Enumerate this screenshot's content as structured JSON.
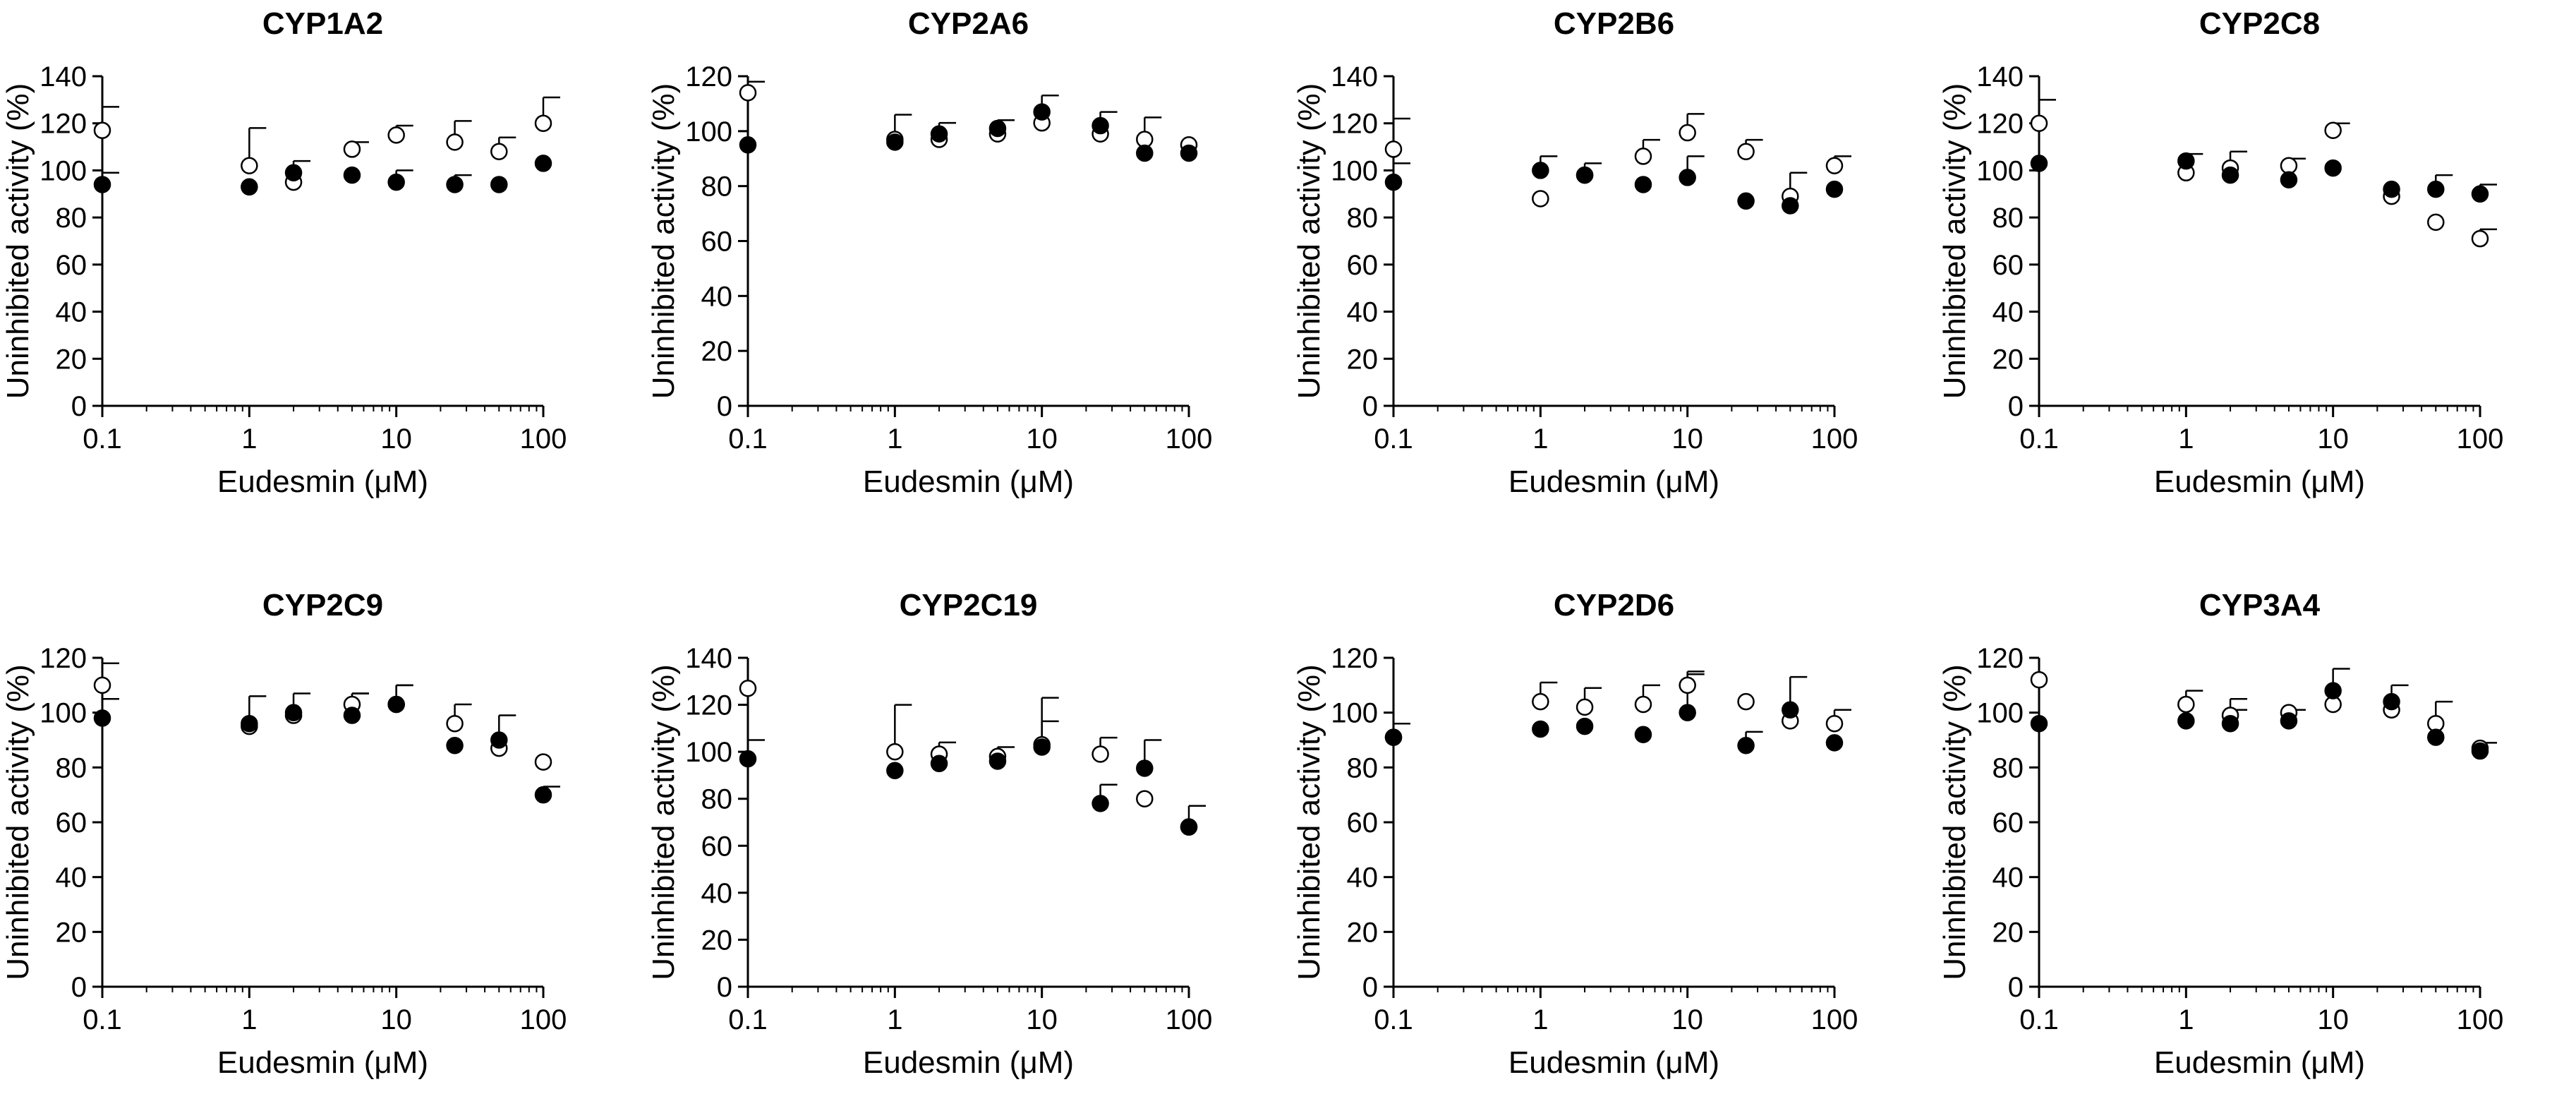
{
  "figure": {
    "description_free": true
  },
  "series_styles": {
    "open": {
      "fill": "#ffffff",
      "stroke": "#000000"
    },
    "filled": {
      "fill": "#000000",
      "stroke": "#000000"
    }
  },
  "chart_data": [
    {
      "type": "scatter",
      "title": "CYP1A2",
      "xlabel": "Eudesmin (μM)",
      "ylabel": "Uninhibited activity (%)",
      "xscale": "log",
      "xlim": [
        0.1,
        100
      ],
      "ylim": [
        0,
        140
      ],
      "yticks": [
        0,
        20,
        40,
        60,
        80,
        100,
        120,
        140
      ],
      "xticks": [
        0.1,
        1,
        10,
        100
      ],
      "xtick_labels": [
        "0.1",
        "1",
        "10",
        "100"
      ],
      "x": [
        0.1,
        1,
        2,
        5,
        10,
        25,
        50,
        100
      ],
      "series": [
        {
          "name": "open",
          "marker": "open-circle",
          "values": [
            117,
            102,
            95,
            109,
            115,
            112,
            108,
            120
          ],
          "err": [
            10,
            16,
            0,
            3,
            4,
            9,
            6,
            11
          ]
        },
        {
          "name": "filled",
          "marker": "filled-circle",
          "values": [
            94,
            93,
            99,
            98,
            95,
            94,
            94,
            103
          ],
          "err": [
            5,
            0,
            5,
            0,
            5,
            4,
            0,
            0
          ]
        }
      ]
    },
    {
      "type": "scatter",
      "title": "CYP2A6",
      "xlabel": "Eudesmin (μM)",
      "ylabel": "Uninhibited activity (%)",
      "xscale": "log",
      "xlim": [
        0.1,
        100
      ],
      "ylim": [
        0,
        120
      ],
      "yticks": [
        0,
        20,
        40,
        60,
        80,
        100,
        120
      ],
      "xticks": [
        0.1,
        1,
        10,
        100
      ],
      "xtick_labels": [
        "0.1",
        "1",
        "10",
        "100"
      ],
      "x": [
        0.1,
        1,
        2,
        5,
        10,
        25,
        50,
        100
      ],
      "series": [
        {
          "name": "open",
          "marker": "open-circle",
          "values": [
            114,
            97,
            97,
            99,
            103,
            99,
            97,
            95
          ],
          "err": [
            4,
            0,
            0,
            0,
            0,
            0,
            8,
            0
          ]
        },
        {
          "name": "filled",
          "marker": "filled-circle",
          "values": [
            95,
            96,
            99,
            101,
            107,
            102,
            92,
            92
          ],
          "err": [
            0,
            10,
            4,
            3,
            6,
            5,
            0,
            0
          ]
        }
      ]
    },
    {
      "type": "scatter",
      "title": "CYP2B6",
      "xlabel": "Eudesmin (μM)",
      "ylabel": "Uninhibited activity (%)",
      "xscale": "log",
      "xlim": [
        0.1,
        100
      ],
      "ylim": [
        0,
        140
      ],
      "yticks": [
        0,
        20,
        40,
        60,
        80,
        100,
        120,
        140
      ],
      "xticks": [
        0.1,
        1,
        10,
        100
      ],
      "xtick_labels": [
        "0.1",
        "1",
        "10",
        "100"
      ],
      "x": [
        0.1,
        1,
        2,
        5,
        10,
        25,
        50,
        100
      ],
      "series": [
        {
          "name": "open",
          "marker": "open-circle",
          "values": [
            109,
            88,
            98,
            106,
            116,
            108,
            89,
            102
          ],
          "err": [
            13,
            0,
            0,
            7,
            8,
            5,
            10,
            4
          ]
        },
        {
          "name": "filled",
          "marker": "filled-circle",
          "values": [
            95,
            100,
            98,
            94,
            97,
            87,
            85,
            92
          ],
          "err": [
            8,
            6,
            5,
            0,
            9,
            0,
            0,
            0
          ]
        }
      ]
    },
    {
      "type": "scatter",
      "title": "CYP2C8",
      "xlabel": "Eudesmin (μM)",
      "ylabel": "Uninhibited activity (%)",
      "xscale": "log",
      "xlim": [
        0.1,
        100
      ],
      "ylim": [
        0,
        140
      ],
      "yticks": [
        0,
        20,
        40,
        60,
        80,
        100,
        120,
        140
      ],
      "xticks": [
        0.1,
        1,
        10,
        100
      ],
      "xtick_labels": [
        "0.1",
        "1",
        "10",
        "100"
      ],
      "x": [
        0.1,
        1,
        2,
        5,
        10,
        25,
        50,
        100
      ],
      "series": [
        {
          "name": "open",
          "marker": "open-circle",
          "values": [
            120,
            99,
            101,
            102,
            117,
            89,
            78,
            71
          ],
          "err": [
            10,
            0,
            7,
            3,
            3,
            0,
            0,
            4
          ]
        },
        {
          "name": "filled",
          "marker": "filled-circle",
          "values": [
            103,
            104,
            98,
            96,
            101,
            92,
            92,
            90
          ],
          "err": [
            0,
            3,
            0,
            0,
            0,
            0,
            6,
            4
          ]
        }
      ]
    },
    {
      "type": "scatter",
      "title": "CYP2C9",
      "xlabel": "Eudesmin (μM)",
      "ylabel": "Uninhibited activity (%)",
      "xscale": "log",
      "xlim": [
        0.1,
        100
      ],
      "ylim": [
        0,
        120
      ],
      "yticks": [
        0,
        20,
        40,
        60,
        80,
        100,
        120
      ],
      "xticks": [
        0.1,
        1,
        10,
        100
      ],
      "xtick_labels": [
        "0.1",
        "1",
        "10",
        "100"
      ],
      "x": [
        0.1,
        1,
        2,
        5,
        10,
        25,
        50,
        100
      ],
      "series": [
        {
          "name": "open",
          "marker": "open-circle",
          "values": [
            110,
            95,
            99,
            103,
            103,
            96,
            87,
            82
          ],
          "err": [
            8,
            0,
            0,
            4,
            7,
            7,
            12,
            0
          ]
        },
        {
          "name": "filled",
          "marker": "filled-circle",
          "values": [
            98,
            96,
            100,
            99,
            103,
            88,
            90,
            70
          ],
          "err": [
            7,
            10,
            7,
            8,
            7,
            0,
            0,
            3
          ]
        }
      ]
    },
    {
      "type": "scatter",
      "title": "CYP2C19",
      "xlabel": "Eudesmin (μM)",
      "ylabel": "Uninhibited activity (%)",
      "xscale": "log",
      "xlim": [
        0.1,
        100
      ],
      "ylim": [
        0,
        140
      ],
      "yticks": [
        0,
        20,
        40,
        60,
        80,
        100,
        120,
        140
      ],
      "xticks": [
        0.1,
        1,
        10,
        100
      ],
      "xtick_labels": [
        "0.1",
        "1",
        "10",
        "100"
      ],
      "x": [
        0.1,
        1,
        2,
        5,
        10,
        25,
        50,
        100
      ],
      "series": [
        {
          "name": "open",
          "marker": "open-circle",
          "values": [
            127,
            100,
            99,
            98,
            103,
            99,
            80,
            68
          ],
          "err": [
            0,
            20,
            5,
            4,
            20,
            7,
            0,
            9
          ]
        },
        {
          "name": "filled",
          "marker": "filled-circle",
          "values": [
            97,
            92,
            95,
            96,
            102,
            78,
            93,
            68
          ],
          "err": [
            8,
            0,
            0,
            0,
            11,
            8,
            12,
            0
          ]
        }
      ]
    },
    {
      "type": "scatter",
      "title": "CYP2D6",
      "xlabel": "Eudesmin (μM)",
      "ylabel": "Uninhibited activity (%)",
      "xscale": "log",
      "xlim": [
        0.1,
        100
      ],
      "ylim": [
        0,
        120
      ],
      "yticks": [
        0,
        20,
        40,
        60,
        80,
        100,
        120
      ],
      "xticks": [
        0.1,
        1,
        10,
        100
      ],
      "xtick_labels": [
        "0.1",
        "1",
        "10",
        "100"
      ],
      "x": [
        0.1,
        1,
        2,
        5,
        10,
        25,
        50,
        100
      ],
      "series": [
        {
          "name": "open",
          "marker": "open-circle",
          "values": [
            91,
            104,
            102,
            103,
            110,
            104,
            97,
            96
          ],
          "err": [
            5,
            7,
            7,
            7,
            5,
            0,
            0,
            5
          ]
        },
        {
          "name": "filled",
          "marker": "filled-circle",
          "values": [
            91,
            94,
            95,
            92,
            100,
            88,
            101,
            89
          ],
          "err": [
            0,
            0,
            0,
            0,
            14,
            5,
            12,
            0
          ]
        }
      ]
    },
    {
      "type": "scatter",
      "title": "CYP3A4",
      "xlabel": "Eudesmin (μM)",
      "ylabel": "Uninhibited activity (%)",
      "xscale": "log",
      "xlim": [
        0.1,
        100
      ],
      "ylim": [
        0,
        120
      ],
      "yticks": [
        0,
        20,
        40,
        60,
        80,
        100,
        120
      ],
      "xticks": [
        0.1,
        1,
        10,
        100
      ],
      "xtick_labels": [
        "0.1",
        "1",
        "10",
        "100"
      ],
      "x": [
        0.1,
        1,
        2,
        5,
        10,
        25,
        50,
        100
      ],
      "series": [
        {
          "name": "open",
          "marker": "open-circle",
          "values": [
            112,
            103,
            99,
            100,
            103,
            101,
            96,
            87
          ],
          "err": [
            0,
            5,
            6,
            0,
            0,
            0,
            8,
            0
          ]
        },
        {
          "name": "filled",
          "marker": "filled-circle",
          "values": [
            96,
            97,
            96,
            97,
            108,
            104,
            91,
            86
          ],
          "err": [
            0,
            0,
            5,
            4,
            8,
            6,
            0,
            3
          ]
        }
      ]
    }
  ]
}
